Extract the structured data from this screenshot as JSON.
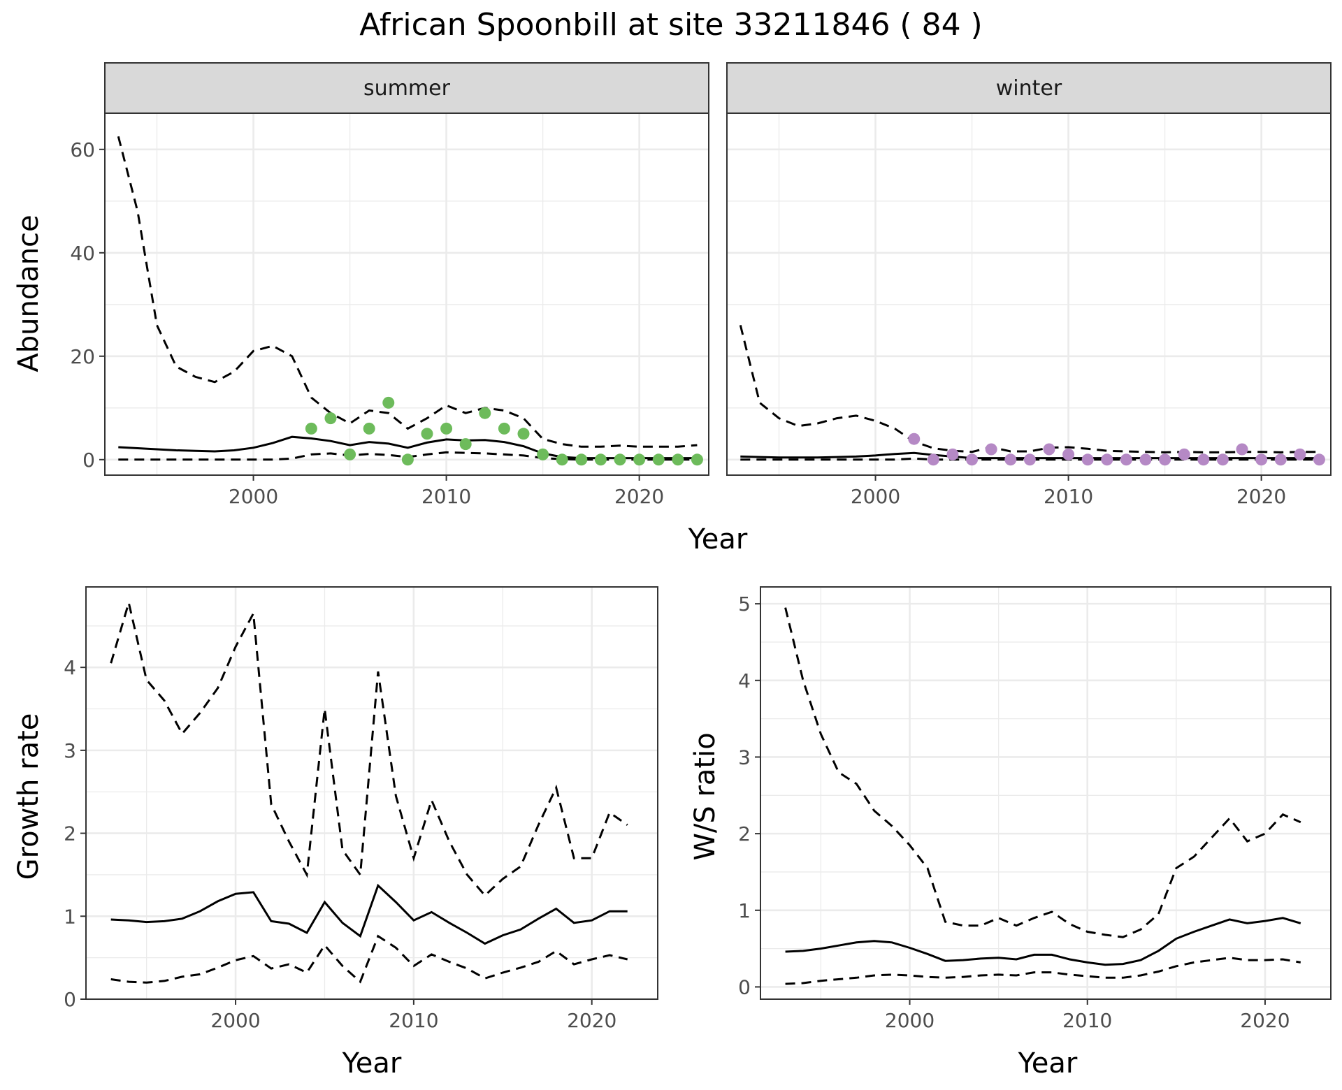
{
  "chart_data": {
    "title": "African Spoonbill at site 33211846 ( 84 )",
    "x_axis_title": "Year",
    "panels": [
      {
        "id": "summer",
        "type": "line",
        "facet_label": "summer",
        "ylabel": "Abundance",
        "xlim": [
          1992.3,
          2023.6
        ],
        "ylim": [
          -3,
          67
        ],
        "xticks": [
          2000,
          2010,
          2020
        ],
        "yticks": [
          0,
          20,
          40,
          60
        ],
        "grid": true,
        "point_color": "#6dbb5b",
        "years": [
          1993,
          1994,
          1995,
          1996,
          1997,
          1998,
          1999,
          2000,
          2001,
          2002,
          2003,
          2004,
          2005,
          2006,
          2007,
          2008,
          2009,
          2010,
          2011,
          2012,
          2013,
          2014,
          2015,
          2016,
          2017,
          2018,
          2019,
          2020,
          2021,
          2022,
          2023
        ],
        "series": [
          {
            "role": "estimate",
            "style": "solid",
            "values": [
              2.4,
              2.2,
              2.0,
              1.8,
              1.7,
              1.6,
              1.8,
              2.3,
              3.2,
              4.4,
              4.1,
              3.6,
              2.8,
              3.4,
              3.1,
              2.3,
              3.3,
              3.9,
              3.7,
              3.8,
              3.4,
              2.6,
              1.2,
              0.5,
              0.3,
              0.3,
              0.3,
              0.3,
              0.3,
              0.3,
              0.3
            ]
          },
          {
            "role": "upper",
            "style": "dashed",
            "values": [
              62.5,
              48,
              26,
              18,
              16,
              15,
              17,
              21,
              22,
              20,
              12,
              9,
              7,
              9.5,
              9,
              6,
              8,
              10.5,
              9,
              10,
              9.5,
              8,
              4,
              3,
              2.5,
              2.5,
              2.7,
              2.5,
              2.5,
              2.5,
              2.8
            ]
          },
          {
            "role": "lower",
            "style": "dashed",
            "values": [
              0,
              0,
              0,
              0,
              0,
              0,
              0,
              0,
              0,
              0.2,
              1,
              1.2,
              0.8,
              1.1,
              0.9,
              0.5,
              1,
              1.4,
              1.3,
              1.2,
              1,
              0.8,
              0.3,
              0.1,
              0,
              0,
              0,
              0,
              0,
              0,
              0
            ]
          }
        ],
        "points": {
          "x": [
            2003,
            2004,
            2005,
            2006,
            2007,
            2008,
            2009,
            2010,
            2011,
            2012,
            2013,
            2014,
            2015,
            2016,
            2017,
            2018,
            2019,
            2020,
            2021,
            2022,
            2023
          ],
          "y": [
            6,
            8,
            1,
            6,
            11,
            0,
            5,
            6,
            3,
            9,
            6,
            5,
            1,
            0,
            0,
            0,
            0,
            0,
            0,
            0,
            0
          ]
        }
      },
      {
        "id": "winter",
        "type": "line",
        "facet_label": "winter",
        "ylabel": "",
        "xlim": [
          1992.3,
          2023.6
        ],
        "ylim": [
          -3,
          67
        ],
        "xticks": [
          2000,
          2010,
          2020
        ],
        "yticks": [
          0,
          20,
          40,
          60
        ],
        "grid": true,
        "point_color": "#b589c5",
        "years": [
          1993,
          1994,
          1995,
          1996,
          1997,
          1998,
          1999,
          2000,
          2001,
          2002,
          2003,
          2004,
          2005,
          2006,
          2007,
          2008,
          2009,
          2010,
          2011,
          2012,
          2013,
          2014,
          2015,
          2016,
          2017,
          2018,
          2019,
          2020,
          2021,
          2022,
          2023
        ],
        "series": [
          {
            "role": "estimate",
            "style": "solid",
            "values": [
              0.6,
              0.5,
              0.4,
              0.4,
              0.4,
              0.5,
              0.6,
              0.8,
              1.1,
              1.3,
              0.9,
              0.6,
              0.3,
              0.3,
              0.3,
              0.3,
              0.3,
              0.3,
              0.3,
              0.3,
              0.3,
              0.3,
              0.3,
              0.3,
              0.3,
              0.3,
              0.3,
              0.3,
              0.3,
              0.3,
              0.3
            ]
          },
          {
            "role": "upper",
            "style": "dashed",
            "values": [
              26,
              11,
              8,
              6.5,
              7,
              8,
              8.5,
              7.5,
              6,
              3.5,
              2.2,
              1.7,
              1.5,
              2.4,
              1.6,
              1.6,
              2.3,
              2.4,
              2.1,
              1.7,
              1.6,
              1.5,
              1.4,
              1.5,
              1.4,
              1.4,
              1.5,
              1.5,
              1.4,
              1.5,
              1.5
            ]
          },
          {
            "role": "lower",
            "style": "dashed",
            "values": [
              0,
              0,
              0,
              0,
              0,
              0,
              0,
              0,
              0,
              0.2,
              0,
              0,
              0,
              0,
              0,
              0,
              0,
              0,
              0,
              0,
              0,
              0,
              0,
              0,
              0,
              0,
              0,
              0,
              0,
              0,
              0
            ]
          }
        ],
        "points": {
          "x": [
            2002,
            2003,
            2004,
            2005,
            2006,
            2007,
            2008,
            2009,
            2010,
            2011,
            2012,
            2013,
            2014,
            2015,
            2016,
            2017,
            2018,
            2019,
            2020,
            2021,
            2022,
            2023
          ],
          "y": [
            4,
            0,
            1,
            0,
            2,
            0,
            0,
            2,
            1,
            0,
            0,
            0,
            0,
            0,
            1,
            0,
            0,
            2,
            0,
            0,
            1,
            0
          ]
        }
      },
      {
        "id": "growth",
        "type": "line",
        "ylabel": "Growth rate",
        "xlabel": "Year",
        "xlim": [
          1991.6,
          2023.7
        ],
        "ylim": [
          0,
          4.97
        ],
        "xticks": [
          2000,
          2010,
          2020
        ],
        "yticks": [
          0,
          1,
          2,
          3,
          4
        ],
        "grid": true,
        "years": [
          1993,
          1994,
          1995,
          1996,
          1997,
          1998,
          1999,
          2000,
          2001,
          2002,
          2003,
          2004,
          2005,
          2006,
          2007,
          2008,
          2009,
          2010,
          2011,
          2012,
          2013,
          2014,
          2015,
          2016,
          2017,
          2018,
          2019,
          2020,
          2021,
          2022
        ],
        "series": [
          {
            "role": "estimate",
            "style": "solid",
            "values": [
              0.96,
              0.95,
              0.93,
              0.94,
              0.97,
              1.06,
              1.18,
              1.27,
              1.29,
              0.94,
              0.91,
              0.8,
              1.17,
              0.92,
              0.76,
              1.37,
              1.17,
              0.95,
              1.05,
              0.92,
              0.8,
              0.67,
              0.77,
              0.84,
              0.97,
              1.09,
              0.92,
              0.95,
              1.06,
              1.06
            ]
          },
          {
            "role": "upper",
            "style": "dashed",
            "values": [
              4.05,
              4.78,
              3.85,
              3.6,
              3.2,
              3.45,
              3.75,
              4.25,
              4.65,
              2.35,
              1.9,
              1.5,
              3.5,
              1.8,
              1.5,
              3.95,
              2.45,
              1.7,
              2.4,
              1.9,
              1.5,
              1.25,
              1.45,
              1.6,
              2.1,
              2.55,
              1.7,
              1.7,
              2.25,
              2.1
            ]
          },
          {
            "role": "lower",
            "style": "dashed",
            "values": [
              0.24,
              0.21,
              0.2,
              0.22,
              0.27,
              0.3,
              0.38,
              0.47,
              0.52,
              0.37,
              0.42,
              0.32,
              0.65,
              0.4,
              0.21,
              0.76,
              0.62,
              0.4,
              0.54,
              0.45,
              0.37,
              0.25,
              0.32,
              0.38,
              0.45,
              0.58,
              0.42,
              0.48,
              0.53,
              0.48
            ]
          }
        ]
      },
      {
        "id": "ws_ratio",
        "type": "line",
        "ylabel": "W/S ratio",
        "xlabel": "Year",
        "xlim": [
          1991.6,
          2023.7
        ],
        "ylim": [
          -0.16,
          5.22
        ],
        "xticks": [
          2000,
          2010,
          2020
        ],
        "yticks": [
          0,
          1,
          2,
          3,
          4,
          5
        ],
        "grid": true,
        "years": [
          1993,
          1994,
          1995,
          1996,
          1997,
          1998,
          1999,
          2000,
          2001,
          2002,
          2003,
          2004,
          2005,
          2006,
          2007,
          2008,
          2009,
          2010,
          2011,
          2012,
          2013,
          2014,
          2015,
          2016,
          2017,
          2018,
          2019,
          2020,
          2021,
          2022
        ],
        "series": [
          {
            "role": "estimate",
            "style": "solid",
            "values": [
              0.46,
              0.47,
              0.5,
              0.54,
              0.58,
              0.6,
              0.58,
              0.51,
              0.43,
              0.34,
              0.35,
              0.37,
              0.38,
              0.36,
              0.42,
              0.42,
              0.36,
              0.32,
              0.29,
              0.3,
              0.35,
              0.47,
              0.63,
              0.72,
              0.8,
              0.88,
              0.83,
              0.86,
              0.9,
              0.83
            ]
          },
          {
            "role": "upper",
            "style": "dashed",
            "values": [
              4.95,
              4.0,
              3.3,
              2.8,
              2.65,
              2.3,
              2.1,
              1.85,
              1.55,
              0.85,
              0.8,
              0.8,
              0.9,
              0.8,
              0.9,
              0.98,
              0.82,
              0.72,
              0.68,
              0.65,
              0.75,
              0.95,
              1.55,
              1.7,
              1.95,
              2.2,
              1.9,
              2.0,
              2.25,
              2.15
            ]
          },
          {
            "role": "lower",
            "style": "dashed",
            "values": [
              0.04,
              0.05,
              0.08,
              0.1,
              0.12,
              0.15,
              0.16,
              0.15,
              0.13,
              0.12,
              0.13,
              0.15,
              0.16,
              0.15,
              0.19,
              0.19,
              0.16,
              0.14,
              0.12,
              0.12,
              0.15,
              0.2,
              0.27,
              0.32,
              0.35,
              0.38,
              0.35,
              0.35,
              0.36,
              0.32
            ]
          }
        ]
      }
    ]
  }
}
